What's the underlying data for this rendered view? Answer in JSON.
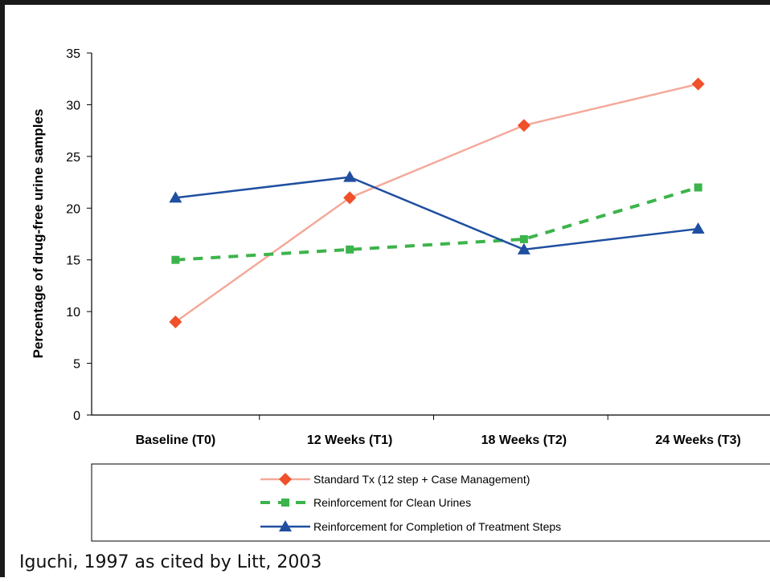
{
  "chart_data": {
    "type": "line",
    "categories": [
      "Baseline (T0)",
      "12 Weeks (T1)",
      "18 Weeks (T2)",
      "24 Weeks (T3)"
    ],
    "ylabel": "Percentage of drug-free urine samples",
    "ylim": [
      0,
      35
    ],
    "yticks": [
      0,
      5,
      10,
      15,
      20,
      25,
      30,
      35
    ],
    "grid": false,
    "legend_position": "bottom",
    "series": [
      {
        "name": "Standard Tx (12 step + Case Management)",
        "values": [
          9,
          21,
          28,
          32
        ],
        "color": "#f0502a",
        "line_color": "#f4a99a",
        "marker": "diamond",
        "line_style": "solid"
      },
      {
        "name": "Reinforcement for Clean Urines",
        "values": [
          15,
          16,
          17,
          22
        ],
        "color": "#3cb44b",
        "line_color": "#3cb44b",
        "marker": "square",
        "line_style": "dashed"
      },
      {
        "name": "Reinforcement for Completion of Treatment Steps",
        "values": [
          21,
          23,
          16,
          18
        ],
        "color": "#1f4fa0",
        "line_color": "#1f4fa0",
        "marker": "triangle",
        "line_style": "solid"
      }
    ]
  },
  "citation": "Iguchi, 1997 as cited by Litt, 2003"
}
